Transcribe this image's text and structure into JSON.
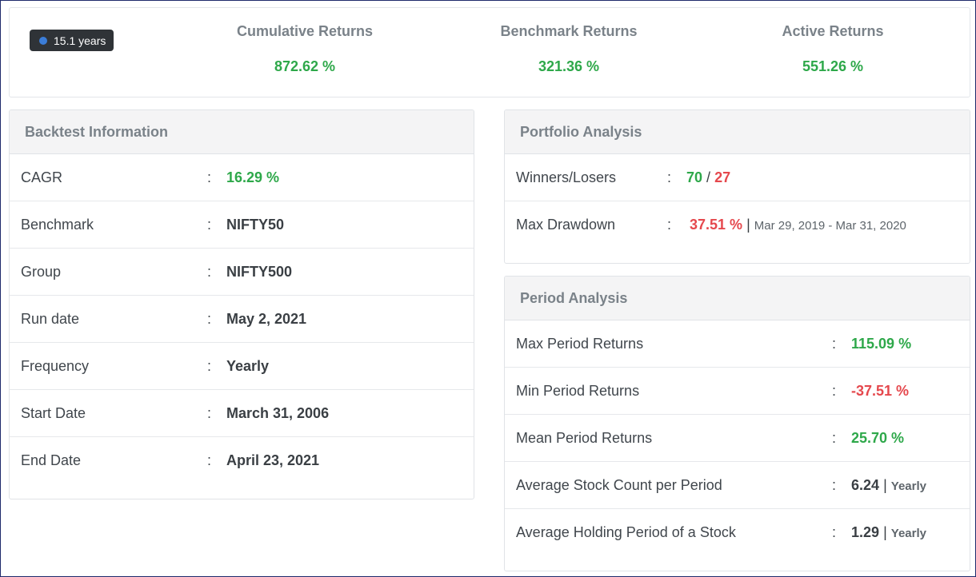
{
  "summary": {
    "duration": "15.1 years",
    "cumulative": {
      "label": "Cumulative Returns",
      "value": "872.62 %"
    },
    "benchmark": {
      "label": "Benchmark Returns",
      "value": "321.36 %"
    },
    "active": {
      "label": "Active Returns",
      "value": "551.26 %"
    }
  },
  "backtest": {
    "title": "Backtest Information",
    "rows": [
      {
        "key": "CAGR",
        "value": "16.29 %"
      },
      {
        "key": "Benchmark",
        "value": "NIFTY50"
      },
      {
        "key": "Group",
        "value": "NIFTY500"
      },
      {
        "key": "Run date",
        "value": "May 2, 2021"
      },
      {
        "key": "Frequency",
        "value": "Yearly"
      },
      {
        "key": "Start Date",
        "value": "March 31, 2006"
      },
      {
        "key": "End Date",
        "value": "April 23, 2021"
      }
    ]
  },
  "portfolio": {
    "title": "Portfolio Analysis",
    "winners_label": "Winners/Losers",
    "winners": "70",
    "slash": "/",
    "losers": "27",
    "drawdown_label": "Max Drawdown",
    "drawdown_value": "37.51 %",
    "drawdown_sep": "|",
    "drawdown_range": "Mar 29, 2019 - Mar 31, 2020"
  },
  "period": {
    "title": "Period Analysis",
    "rows": [
      {
        "key": "Max Period Returns",
        "value": "115.09 %",
        "unit": ""
      },
      {
        "key": "Min Period Returns",
        "value": "-37.51 %",
        "unit": ""
      },
      {
        "key": "Mean Period Returns",
        "value": "25.70 %",
        "unit": ""
      },
      {
        "key": "Average Stock Count per Period",
        "value": "6.24",
        "unit": "Yearly"
      },
      {
        "key": "Average Holding Period of a Stock",
        "value": "1.29",
        "unit": "Yearly"
      }
    ]
  },
  "colon": ":",
  "colors": {
    "positive": "#2ea84a",
    "negative": "#e5484d",
    "badge_dot": "#3b7dd8"
  }
}
